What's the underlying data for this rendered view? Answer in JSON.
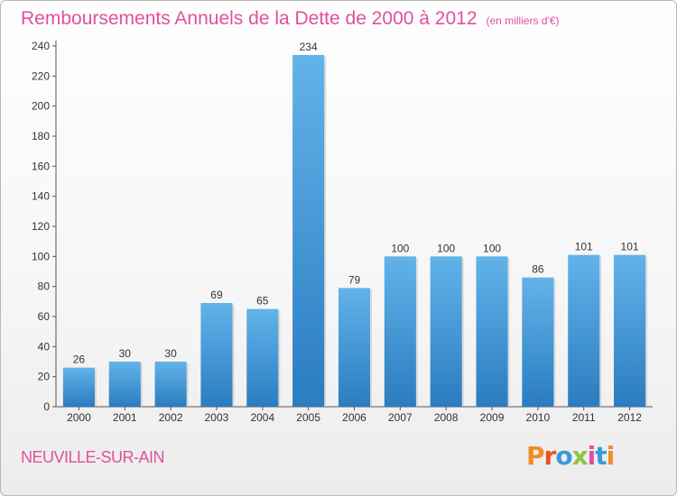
{
  "header": {
    "title": "Remboursements Annuels de la Dette de 2000 à 2012",
    "subtitle": "(en milliers d'€)"
  },
  "footer": {
    "commune": "NEUVILLE-SUR-AIN",
    "logo_text": "Proxiti",
    "logo_colors": [
      "#f28c28",
      "#e8541c",
      "#3a9ad9",
      "#8cc63f",
      "#e0509e",
      "#3a9ad9",
      "#f28c28"
    ]
  },
  "colors": {
    "bar_light": "#62b3ea",
    "bar_dark": "#2b7cc0",
    "accent_pink": "#e0509e"
  },
  "chart_data": {
    "type": "bar",
    "title": "Remboursements Annuels de la Dette de 2000 à 2012",
    "subtitle": "(en milliers d'€)",
    "xlabel": "",
    "ylabel": "",
    "categories": [
      "2000",
      "2001",
      "2002",
      "2003",
      "2004",
      "2005",
      "2006",
      "2007",
      "2008",
      "2009",
      "2010",
      "2011",
      "2012"
    ],
    "values": [
      26,
      30,
      30,
      69,
      65,
      234,
      79,
      100,
      100,
      100,
      86,
      101,
      101
    ],
    "ylim": [
      0,
      240
    ],
    "yticks": [
      0,
      20,
      40,
      60,
      80,
      100,
      120,
      140,
      160,
      180,
      200,
      220,
      240
    ],
    "grid": false,
    "legend": "none"
  }
}
